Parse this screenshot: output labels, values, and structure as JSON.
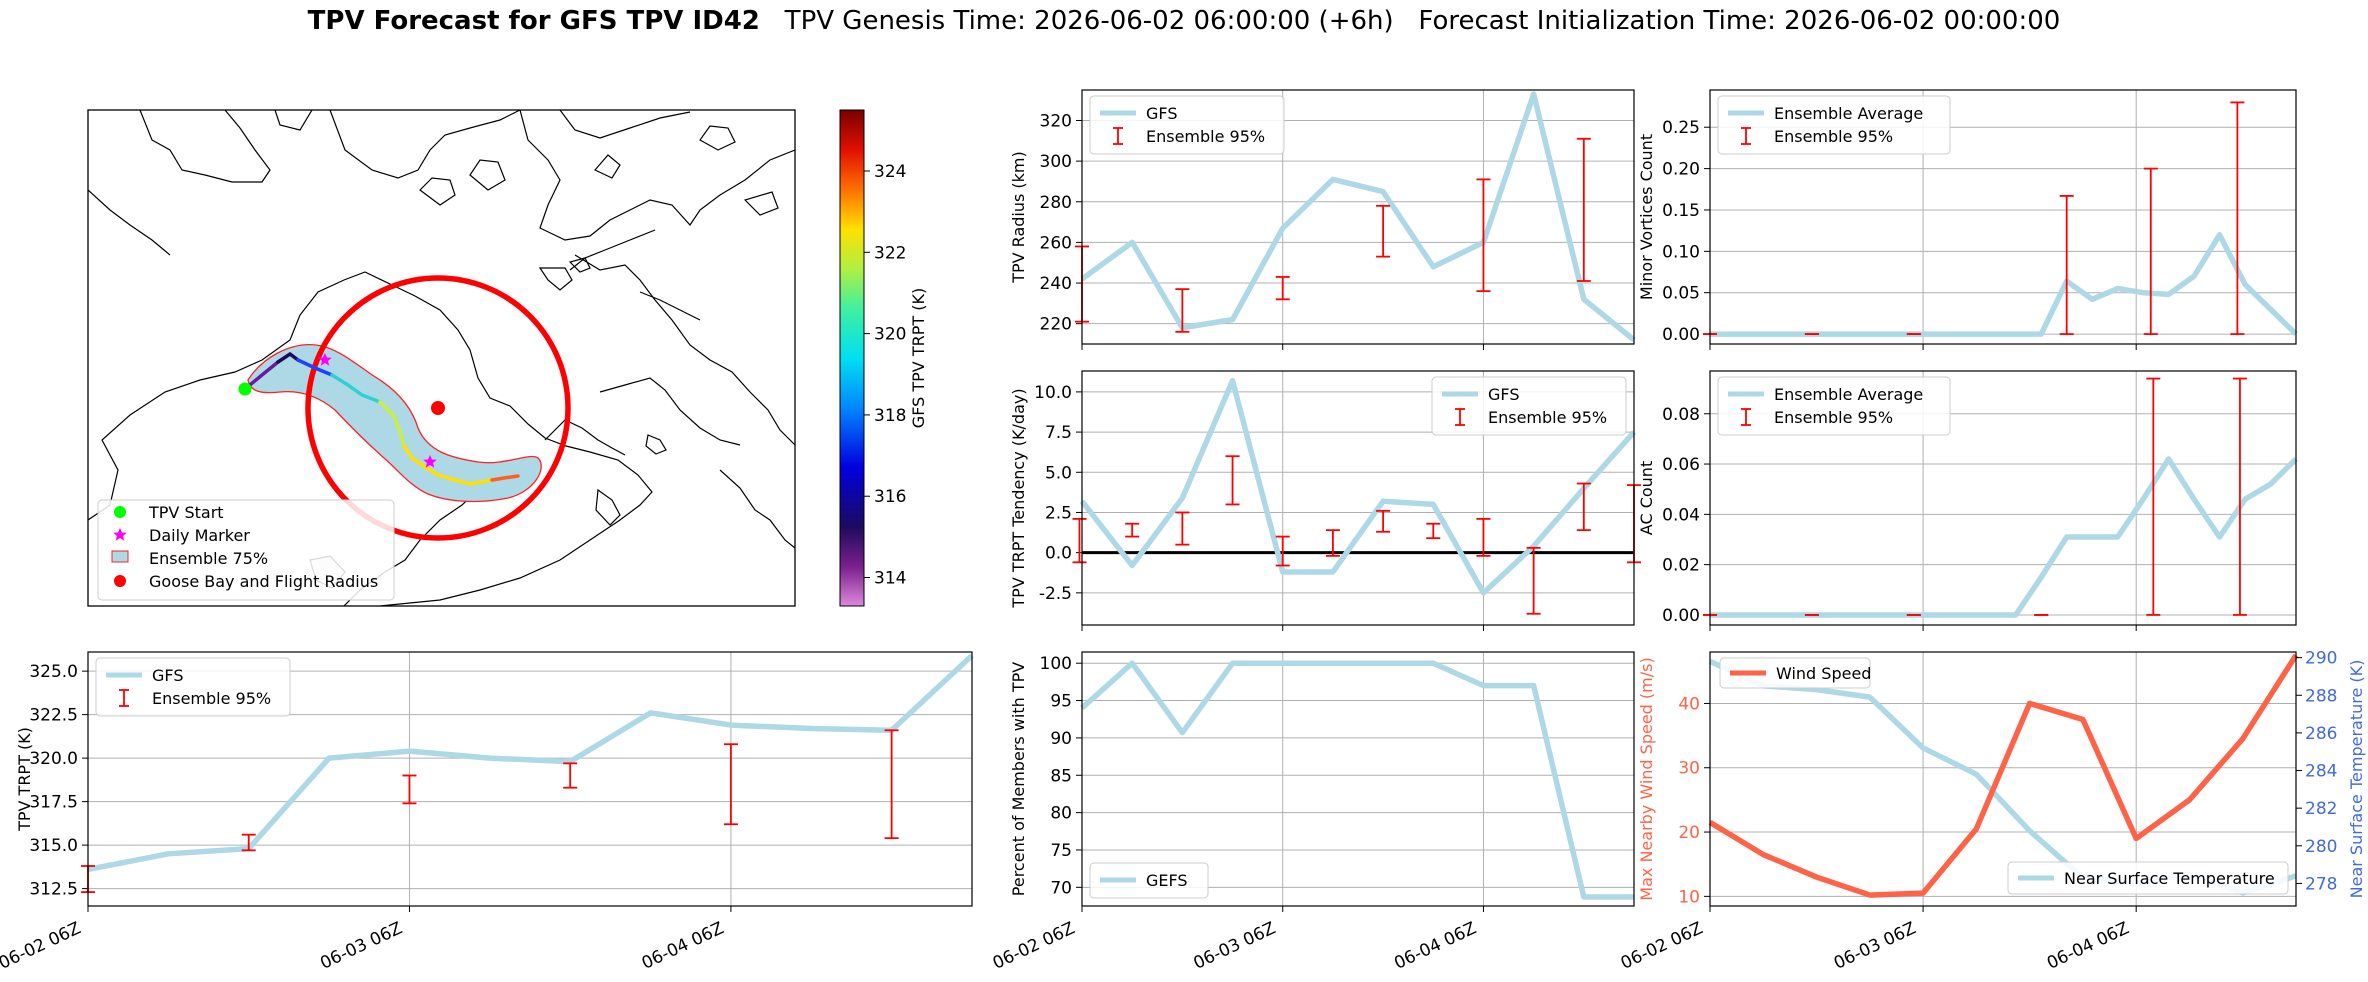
{
  "header": {
    "title_bold": "TPV Forecast for GFS TPV ID42",
    "title_rest": "   TPV Genesis Time: 2026-06-02 06:00:00 (+6h)   Forecast Initialization Time: 2026-06-02 00:00:00"
  },
  "colors": {
    "gfs_line": "#add8e6",
    "error_bar": "#ff0000",
    "wind": "#ff6347",
    "temp_axis": "#4169e1",
    "grid": "#b0b0b0"
  },
  "map": {
    "legend": [
      "TPV Start",
      "Daily Marker",
      "Ensemble 75%",
      "Goose Bay and Flight Radius"
    ],
    "colorbar": {
      "label": "GFS TPV TRPT (K)",
      "ticks": [
        "324",
        "322",
        "320",
        "318",
        "316",
        "314"
      ],
      "range": [
        313.3,
        325.5
      ]
    }
  },
  "x_time_ticks": [
    "06-02 06Z",
    "06-03 06Z",
    "06-04 06Z"
  ],
  "chart_data": [
    {
      "id": "radius",
      "type": "line",
      "ylabel": "TPV Radius (km)",
      "ylim": [
        210,
        335
      ],
      "yticks": [
        "220",
        "240",
        "260",
        "280",
        "300",
        "320"
      ],
      "legend": [
        "GFS",
        "Ensemble 95%"
      ],
      "legend_loc": "top-left",
      "grid": true,
      "x": [
        0,
        1,
        2,
        3,
        4,
        5,
        6,
        7,
        8,
        9,
        10,
        11
      ],
      "values": [
        242,
        260,
        218,
        222,
        267,
        291,
        285,
        248,
        260,
        333,
        232,
        212
      ],
      "errorbars": [
        [
          0,
          221,
          258
        ],
        [
          2,
          216,
          237
        ],
        [
          4,
          232,
          243
        ],
        [
          6,
          253,
          278
        ],
        [
          8,
          236,
          291
        ],
        [
          10,
          241,
          311
        ]
      ]
    },
    {
      "id": "tendency",
      "type": "line",
      "ylabel": "TPV TRPT Tendency (K/day)",
      "ylim": [
        -4.5,
        11.3
      ],
      "yticks": [
        "-2.5",
        "0.0",
        "2.5",
        "5.0",
        "7.5",
        "10.0"
      ],
      "legend": [
        "GFS",
        "Ensemble 95%"
      ],
      "legend_loc": "top-right",
      "grid": true,
      "zero_line": true,
      "x": [
        0,
        1,
        2,
        3,
        4,
        5,
        6,
        7,
        8,
        9,
        10,
        11
      ],
      "values": [
        3.2,
        -0.8,
        3.4,
        10.7,
        -1.2,
        -1.2,
        3.2,
        3.0,
        -2.5,
        0.4,
        4.0,
        7.5
      ],
      "errorbars": [
        [
          -0.05,
          -0.6,
          2.1
        ],
        [
          1,
          1.0,
          1.8
        ],
        [
          2,
          0.5,
          2.5
        ],
        [
          3,
          3.0,
          6.0
        ],
        [
          4,
          -0.8,
          1.0
        ],
        [
          5,
          -0.2,
          1.4
        ],
        [
          6,
          1.3,
          2.6
        ],
        [
          7,
          0.9,
          1.8
        ],
        [
          8,
          -0.2,
          2.1
        ],
        [
          9,
          -3.8,
          0.3
        ],
        [
          10,
          1.4,
          4.3
        ],
        [
          11,
          -0.6,
          4.2
        ]
      ]
    },
    {
      "id": "trpt",
      "type": "line",
      "ylabel": "TPV TRPT (K)",
      "ylim": [
        311.5,
        326.1
      ],
      "yticks": [
        "312.5",
        "315.0",
        "317.5",
        "320.0",
        "322.5",
        "325.0"
      ],
      "legend": [
        "GFS",
        "Ensemble 95%"
      ],
      "legend_loc": "top-left",
      "grid": true,
      "x": [
        0,
        1,
        2,
        3,
        4,
        5,
        6,
        7,
        8,
        9,
        10,
        11
      ],
      "values": [
        313.6,
        314.5,
        314.8,
        320.0,
        320.4,
        320.0,
        319.8,
        322.6,
        321.9,
        321.7,
        321.6,
        325.9
      ],
      "errorbars": [
        [
          0,
          312.3,
          313.8
        ],
        [
          2,
          314.7,
          315.6
        ],
        [
          4,
          317.4,
          319.0
        ],
        [
          6,
          318.3,
          319.7
        ],
        [
          8,
          316.2,
          320.8
        ],
        [
          10,
          315.4,
          321.6
        ]
      ]
    },
    {
      "id": "percent",
      "type": "line",
      "ylabel": "Percent of Members with TPV",
      "ylim": [
        67.5,
        101.5
      ],
      "yticks": [
        "70",
        "75",
        "80",
        "85",
        "90",
        "95",
        "100"
      ],
      "legend": [
        "GEFS"
      ],
      "legend_loc": "bottom-left",
      "grid": true,
      "x": [
        0,
        1,
        2,
        3,
        4,
        5,
        6,
        7,
        8,
        9,
        10,
        11
      ],
      "values": [
        94,
        100,
        90.7,
        100,
        100,
        100,
        100,
        100,
        97,
        97,
        68.7,
        68.7
      ]
    },
    {
      "id": "minor_vortices",
      "type": "line",
      "ylabel": "Minor Vortices Count",
      "ylim": [
        -0.012,
        0.295
      ],
      "yticks": [
        "0.00",
        "0.05",
        "0.10",
        "0.15",
        "0.20",
        "0.25"
      ],
      "legend": [
        "Ensemble Average",
        "Ensemble 95%"
      ],
      "legend_loc": "top-left",
      "grid": true,
      "x": [
        0,
        1,
        2,
        3,
        4,
        5,
        6,
        7,
        8,
        9,
        10,
        11,
        12,
        13,
        14,
        15,
        16,
        17,
        18,
        19,
        20,
        21,
        22,
        23
      ],
      "values": [
        0,
        0,
        0,
        0,
        0,
        0,
        0,
        0,
        0,
        0,
        0,
        0,
        0,
        0,
        0.064,
        0.042,
        0.055,
        0.05,
        0.048,
        0.07,
        0.12,
        0.06,
        0.03,
        0
      ],
      "errorbars": [
        [
          0,
          0,
          0
        ],
        [
          4,
          0,
          0
        ],
        [
          8,
          0,
          0
        ],
        [
          14,
          0,
          0.167
        ],
        [
          17.3,
          0,
          0.2
        ],
        [
          20.7,
          0,
          0.28
        ]
      ]
    },
    {
      "id": "ac_count",
      "type": "line",
      "ylabel": "AC Count",
      "ylim": [
        -0.004,
        0.097
      ],
      "yticks": [
        "0.00",
        "0.02",
        "0.04",
        "0.06",
        "0.08"
      ],
      "legend": [
        "Ensemble Average",
        "Ensemble 95%"
      ],
      "legend_loc": "top-left",
      "grid": true,
      "x": [
        0,
        1,
        2,
        3,
        4,
        5,
        6,
        7,
        8,
        9,
        10,
        11,
        12,
        13,
        14,
        15,
        16,
        17,
        18,
        19,
        20,
        21,
        22,
        23
      ],
      "values": [
        0,
        0,
        0,
        0,
        0,
        0,
        0,
        0,
        0,
        0,
        0,
        0,
        0,
        0.015,
        0.031,
        0.031,
        0.031,
        0.046,
        0.062,
        0.046,
        0.031,
        0.046,
        0.052,
        0.062
      ],
      "errorbars": [
        [
          0,
          0,
          0
        ],
        [
          4,
          0,
          0
        ],
        [
          8,
          0,
          0
        ],
        [
          13,
          0,
          0
        ],
        [
          17.4,
          0,
          0.094
        ],
        [
          20.8,
          0,
          0.094
        ]
      ]
    },
    {
      "id": "wind_temp",
      "type": "line",
      "ylabel": "Max Nearby Wind Speed (m/s)",
      "ylabel2": "Near Surface Temperature (K)",
      "ylim": [
        8.5,
        48
      ],
      "yticks": [
        "10",
        "20",
        "30",
        "40"
      ],
      "ylim2": [
        276.8,
        290.3
      ],
      "yticks2": [
        "278",
        "280",
        "282",
        "284",
        "286",
        "288",
        "290"
      ],
      "legend": [
        "Wind Speed",
        "Near Surface Temperature"
      ],
      "grid": true,
      "x": [
        0,
        1,
        2,
        3,
        4,
        5,
        6,
        7,
        8,
        9,
        10,
        11
      ],
      "series": [
        {
          "name": "Wind Speed",
          "values": [
            21.5,
            16.5,
            13,
            10.2,
            10.5,
            20.5,
            40,
            37.5,
            19,
            25,
            34.5,
            47.5
          ]
        },
        {
          "name": "Near Surface Temperature",
          "values": [
            289.8,
            288.5,
            288.3,
            287.9,
            285.2,
            283.8,
            280.8,
            278.3,
            278.0,
            278.5,
            277.5,
            278.4
          ]
        }
      ]
    }
  ]
}
